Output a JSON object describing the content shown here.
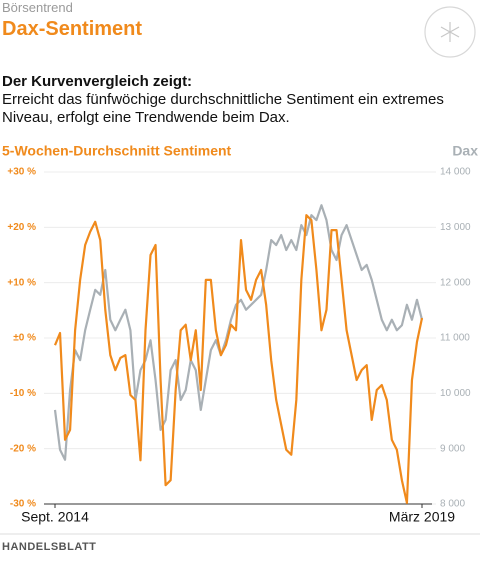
{
  "header": {
    "kicker": "Börsentrend",
    "title": "Dax-Sentiment"
  },
  "lead": "Der Kurvenvergleich zeigt:",
  "body": "Erreicht das fünfwöchige durchschnittliche Sentiment ein extremes Niveau, erfolgt eine Trendwende beim Dax.",
  "source": "HANDELSBLATT",
  "chart_data": {
    "type": "line",
    "categories": [
      "Sept. 2014",
      null,
      null,
      null,
      null,
      null,
      null,
      null,
      null,
      null,
      null,
      null,
      null,
      null,
      null,
      null,
      null,
      null,
      null,
      null,
      null,
      null,
      null,
      null,
      null,
      null,
      null,
      null,
      null,
      null,
      null,
      null,
      null,
      null,
      null,
      null,
      null,
      null,
      null,
      null,
      null,
      null,
      null,
      null,
      null,
      null,
      null,
      null,
      null,
      null,
      null,
      null,
      null,
      null,
      null,
      null,
      null,
      null,
      null,
      null,
      null,
      null,
      null,
      null,
      null,
      null,
      null,
      null,
      null,
      null,
      null,
      null,
      null,
      "März 2019"
    ],
    "series": [
      {
        "name": "5-Wochen-Durchschnitt Sentiment",
        "color": "#f08a1c",
        "axis": "y",
        "values": [
          -1.3,
          0.9,
          -18.4,
          -16.6,
          1.4,
          10.5,
          16.8,
          19.2,
          21.0,
          17.7,
          5.1,
          -3.1,
          -5.8,
          -3.6,
          -3.1,
          -10.3,
          -11.2,
          -22.1,
          1.4,
          15.0,
          16.8,
          -7.6,
          -26.6,
          -25.7,
          -9.4,
          1.4,
          2.4,
          -4.0,
          1.4,
          -9.4,
          10.5,
          10.5,
          1.4,
          -3.1,
          -1.3,
          2.4,
          1.4,
          17.7,
          8.7,
          6.9,
          10.5,
          12.3,
          6.0,
          -4.0,
          -11.2,
          -15.7,
          -20.2,
          -21.1,
          -11.2,
          10.5,
          22.2,
          21.3,
          12.3,
          1.4,
          5.1,
          19.5,
          19.5,
          10.5,
          1.4,
          -3.1,
          -7.6,
          -5.8,
          -4.9,
          -14.8,
          -9.4,
          -8.5,
          -11.2,
          -18.4,
          -20.2,
          -25.7,
          -29.8,
          -7.6,
          -0.7,
          3.6
        ]
      },
      {
        "name": "Dax",
        "color": "#a9b0b5",
        "axis": "y2",
        "values": [
          9700,
          8980,
          8800,
          10060,
          10780,
          10600,
          11140,
          11510,
          11870,
          11780,
          12230,
          11330,
          11140,
          11330,
          11510,
          11140,
          9880,
          10420,
          10600,
          10960,
          10240,
          9340,
          9520,
          10420,
          10600,
          9880,
          10060,
          10600,
          10420,
          9700,
          10240,
          10780,
          10960,
          10690,
          10960,
          11330,
          11600,
          11690,
          11510,
          11600,
          11690,
          11780,
          12230,
          12770,
          12680,
          12860,
          12590,
          12770,
          12590,
          13040,
          12860,
          13220,
          13130,
          13400,
          13130,
          12590,
          12410,
          12860,
          13040,
          12770,
          12500,
          12230,
          12320,
          12050,
          11690,
          11330,
          11140,
          11330,
          11140,
          11230,
          11600,
          11330,
          11690,
          11330
        ]
      }
    ],
    "ylim": [
      -30,
      30
    ],
    "yticks": [
      {
        "value": 30,
        "label": "+30 %"
      },
      {
        "value": 20,
        "label": "+20 %"
      },
      {
        "value": 10,
        "label": "+10 %"
      },
      {
        "value": 0,
        "label": "±0 %"
      },
      {
        "value": -10,
        "label": "-10 %"
      },
      {
        "value": -20,
        "label": "-20 %"
      },
      {
        "value": -30,
        "label": "-30 %"
      }
    ],
    "y2lim": [
      8000,
      14000
    ],
    "y2ticks": [
      {
        "value": 14000,
        "label": "14 000"
      },
      {
        "value": 13000,
        "label": "13 000"
      },
      {
        "value": 12000,
        "label": "12 000"
      },
      {
        "value": 11000,
        "label": "11 000"
      },
      {
        "value": 10000,
        "label": "10 000"
      },
      {
        "value": 9000,
        "label": "9 000"
      },
      {
        "value": 8000,
        "label": "8 000"
      }
    ],
    "grid": true
  }
}
